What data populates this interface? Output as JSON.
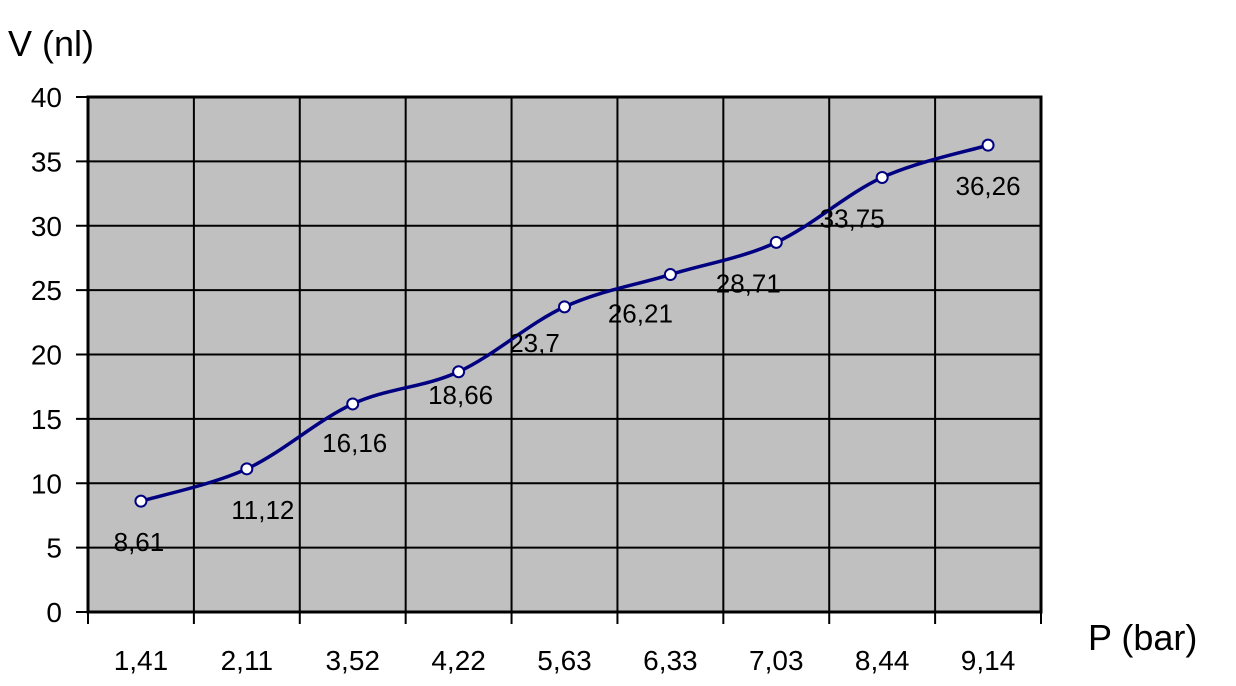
{
  "chart_data": {
    "type": "line",
    "title": "",
    "xlabel": "P (bar)",
    "ylabel": "V (nl)",
    "categories": [
      "1,41",
      "2,11",
      "3,52",
      "4,22",
      "5,63",
      "6,33",
      "7,03",
      "8,44",
      "9,14"
    ],
    "series": [
      {
        "values": [
          8.61,
          11.12,
          16.16,
          18.66,
          23.7,
          26.21,
          28.71,
          33.75,
          36.26
        ],
        "data_labels": [
          "8,61",
          "11,12",
          "16,16",
          "18,66",
          "23,7",
          "26,21",
          "28,71",
          "33,75",
          "36,26"
        ]
      }
    ],
    "ylim": [
      0,
      40
    ],
    "yticks": [
      "0",
      "5",
      "10",
      "15",
      "20",
      "25",
      "30",
      "35",
      "40"
    ],
    "grid": true,
    "legend": "none",
    "colors": {
      "plot_background": "#c0c0c0",
      "line": "#000080",
      "marker_fill": "#ffffff",
      "grid": "#000000"
    }
  }
}
